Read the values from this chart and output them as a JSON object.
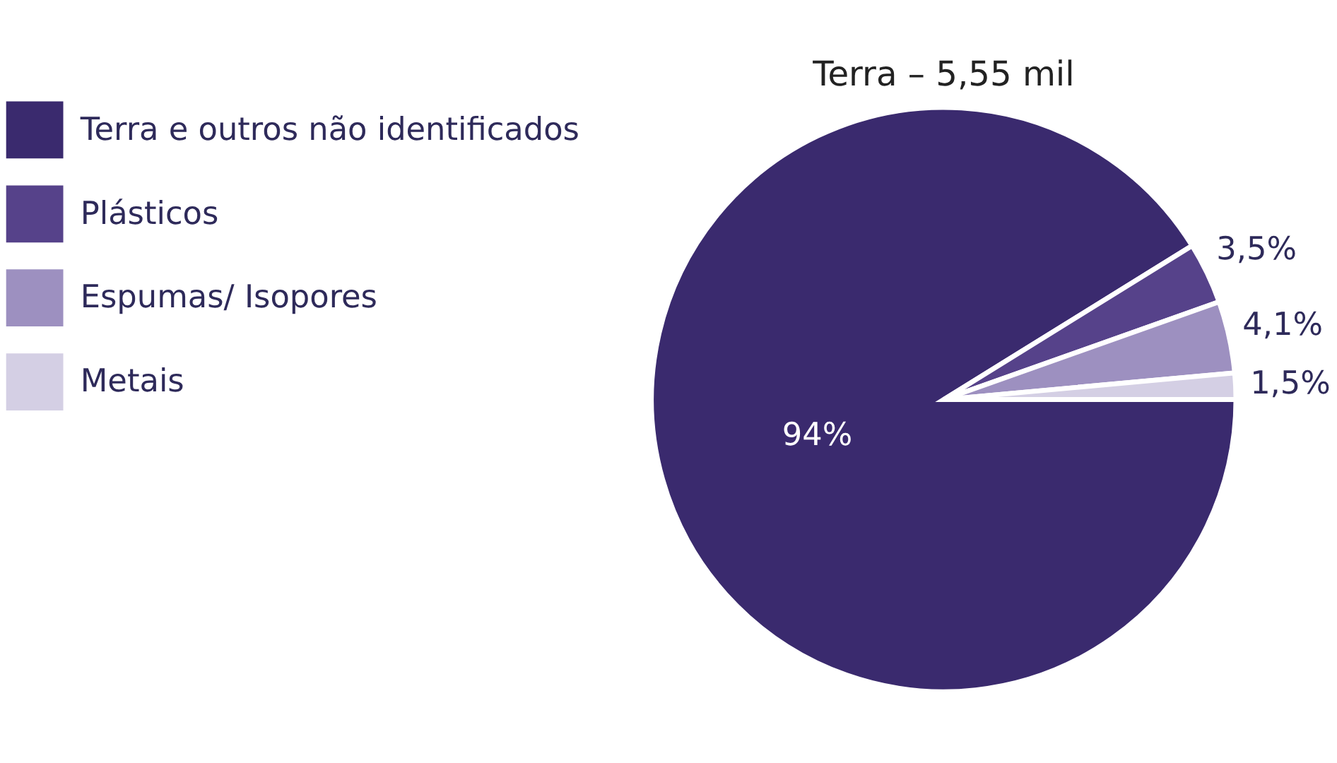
{
  "chart_data": {
    "type": "pie",
    "title": "Terra – 5,55 mil",
    "categories": [
      "Terra e outros não identificados",
      "Plásticos",
      "Espumas/ Isopores",
      "Metais"
    ],
    "values": [
      94,
      3.5,
      4.1,
      1.5
    ],
    "colors": [
      "#3a2a6e",
      "#56428a",
      "#9d90c0",
      "#d4cfe4"
    ],
    "value_labels": [
      "94%",
      "3,5%",
      "4,1%",
      "1,5%"
    ],
    "legend": "left"
  }
}
